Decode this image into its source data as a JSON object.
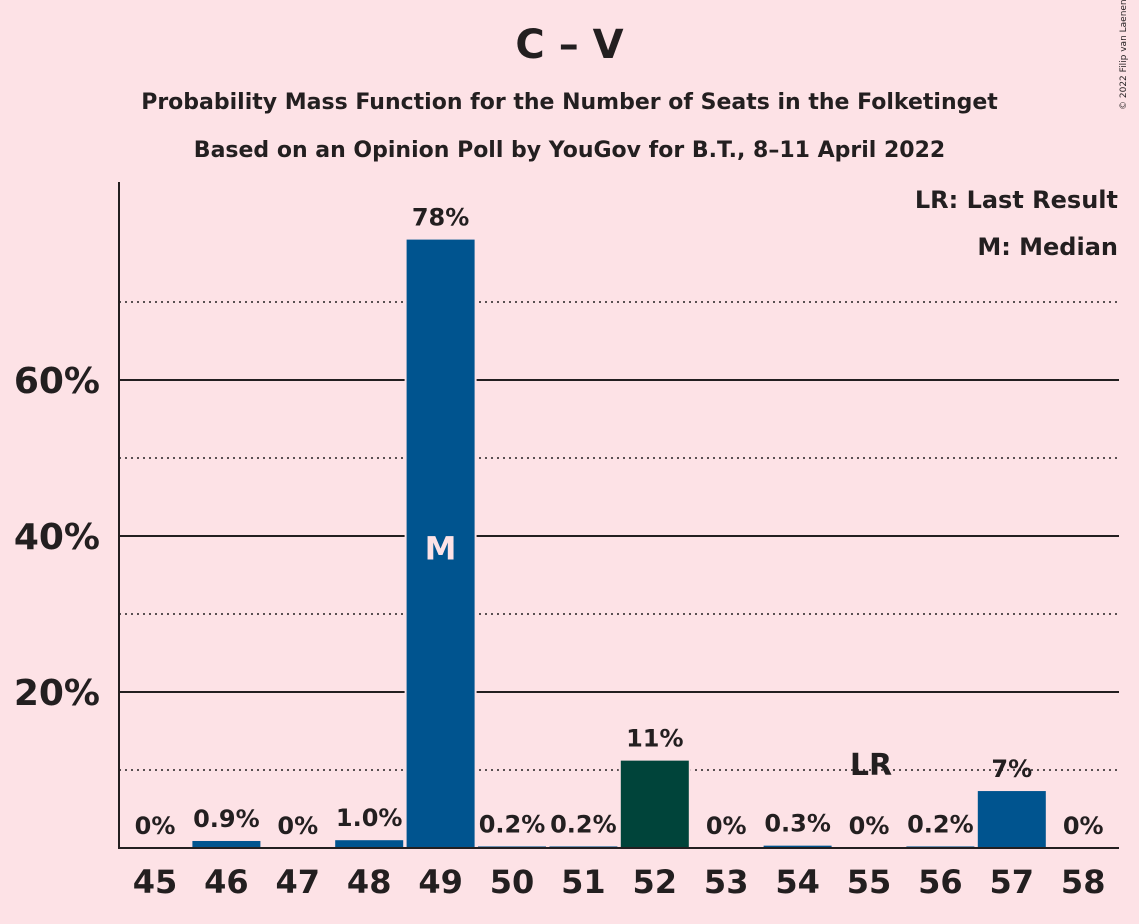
{
  "chart_data": {
    "type": "bar",
    "title": "C – V",
    "subtitle": "Probability Mass Function for the Number of Seats in the Folketinget",
    "subtitle2": "Based on an Opinion Poll by YouGov for B.T., 8–11 April 2022",
    "copyright": "© 2022 Filip van Laenen",
    "categories": [
      "45",
      "46",
      "47",
      "48",
      "49",
      "50",
      "51",
      "52",
      "53",
      "54",
      "55",
      "56",
      "57",
      "58"
    ],
    "values": [
      0,
      0.9,
      0,
      1.0,
      78,
      0.2,
      0.2,
      11.2,
      0,
      0.3,
      0,
      0.2,
      7.3,
      0
    ],
    "data_labels": [
      "0%",
      "0.9%",
      "0%",
      "1.0%",
      "78%",
      "0.2%",
      "0.2%",
      "11%",
      "0%",
      "0.3%",
      "0%",
      "0.2%",
      "7%",
      "0%"
    ],
    "bar_colors": [
      "#00548f",
      "#00548f",
      "#00548f",
      "#00548f",
      "#00548f",
      "#00548f",
      "#00548f",
      "#00443a",
      "#00548f",
      "#00548f",
      "#00548f",
      "#00548f",
      "#00548f",
      "#00548f"
    ],
    "bar_color_groups": [
      "46",
      "48",
      "52"
    ],
    "y_ticks": [
      20,
      40,
      60
    ],
    "y_tick_labels": [
      "20%",
      "40%",
      "60%"
    ],
    "y_minor_gridlines": [
      10,
      30,
      50,
      70
    ],
    "ylim": [
      0,
      85
    ],
    "median_category": "49",
    "median_marker": "M",
    "last_result_category": "55",
    "last_result_marker": "LR",
    "legend": {
      "lr": "LR: Last Result",
      "m": "M: Median"
    },
    "legend_position": "top-right",
    "grid": true
  },
  "colors": {
    "background": "#fde2e6",
    "primary_bar": "#00548f",
    "secondary_bar": "#00443a",
    "text": "#231f20"
  }
}
